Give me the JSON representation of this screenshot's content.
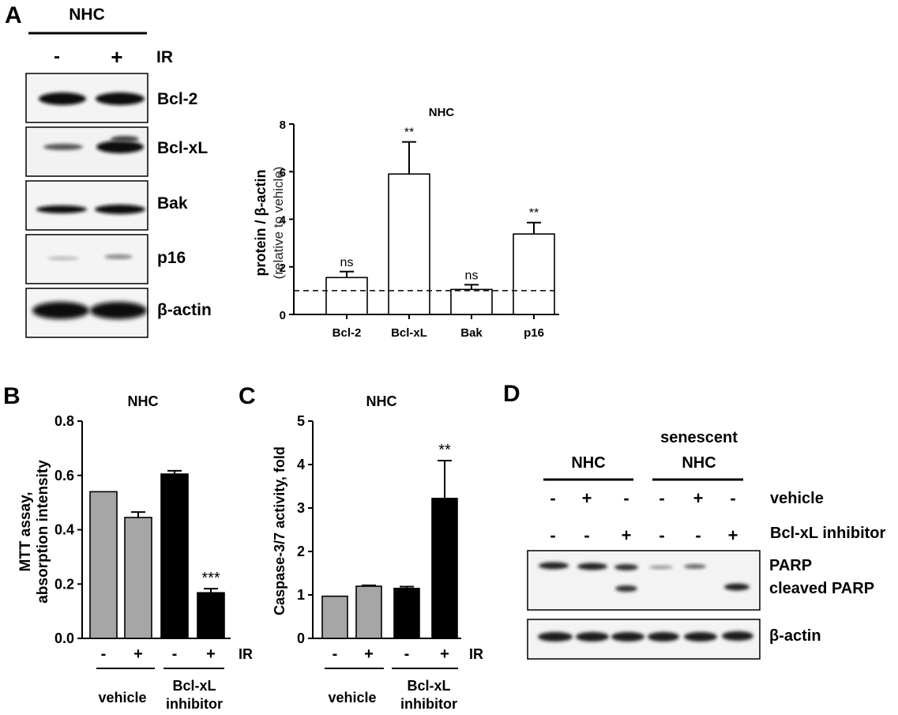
{
  "panel_A": {
    "letter": "A",
    "header": "NHC",
    "lanes": [
      "-",
      "+"
    ],
    "treatment": "IR",
    "blots": [
      "Bcl-2",
      "Bcl-xL",
      "Bak",
      "p16",
      "β-actin"
    ]
  },
  "panel_D": {
    "letter": "D",
    "groups": [
      "NHC",
      "senescent",
      "NHC"
    ],
    "rows": [
      {
        "label": "vehicle",
        "signs": [
          "-",
          "+",
          "-",
          "-",
          "+",
          "-"
        ]
      },
      {
        "label": "Bcl-xL inhibitor",
        "signs": [
          "-",
          "-",
          "+",
          "-",
          "-",
          "+"
        ]
      }
    ],
    "bands": [
      "PARP",
      "cleaved PARP",
      "β-actin"
    ]
  },
  "colors": {
    "gray": "#a6a6a6",
    "black": "#000000",
    "white": "#ffffff"
  },
  "chart_data": [
    {
      "id": "A",
      "type": "bar",
      "title": "NHC",
      "ylabel": "protein / β-actin",
      "ylabel_sub": "(relative to vehicle)",
      "categories": [
        "Bcl-2",
        "Bcl-xL",
        "Bak",
        "p16"
      ],
      "values": [
        1.55,
        5.9,
        1.05,
        3.38
      ],
      "errors": [
        0.25,
        1.35,
        0.2,
        0.48
      ],
      "annotations": [
        "ns",
        "**",
        "ns",
        "**"
      ],
      "ylim": [
        0,
        8
      ],
      "yticks": [
        "0",
        "2",
        "4",
        "6",
        "8"
      ],
      "reference_line": 1
    },
    {
      "id": "B",
      "letter": "B",
      "type": "bar",
      "title": "NHC",
      "ylabel": "MTT assay,",
      "ylabel_sub": "absorption intensity",
      "categories": [
        "-",
        "+",
        "-",
        "+"
      ],
      "values": [
        0.54,
        0.445,
        0.605,
        0.168
      ],
      "errors": [
        0.0,
        0.02,
        0.012,
        0.015
      ],
      "annotations": [
        "",
        "",
        "",
        "***"
      ],
      "ylim": [
        0,
        0.8
      ],
      "yticks": [
        "0.0",
        "0.2",
        "0.4",
        "0.6",
        "0.8"
      ],
      "treatment": "IR",
      "groups": [
        "vehicle",
        "Bcl-xL",
        "inhibitor"
      ]
    },
    {
      "id": "C",
      "letter": "C",
      "type": "bar",
      "title": "NHC",
      "ylabel": "Caspase-3/7 activity, fold",
      "categories": [
        "-",
        "+",
        "-",
        "+"
      ],
      "values": [
        0.97,
        1.2,
        1.15,
        3.22
      ],
      "errors": [
        0.0,
        0.02,
        0.04,
        0.87
      ],
      "annotations": [
        "",
        "",
        "",
        "**"
      ],
      "ylim": [
        0,
        5
      ],
      "yticks": [
        "0",
        "1",
        "2",
        "3",
        "4",
        "5"
      ],
      "treatment": "IR",
      "groups": [
        "vehicle",
        "Bcl-xL",
        "inhibitor"
      ]
    }
  ]
}
